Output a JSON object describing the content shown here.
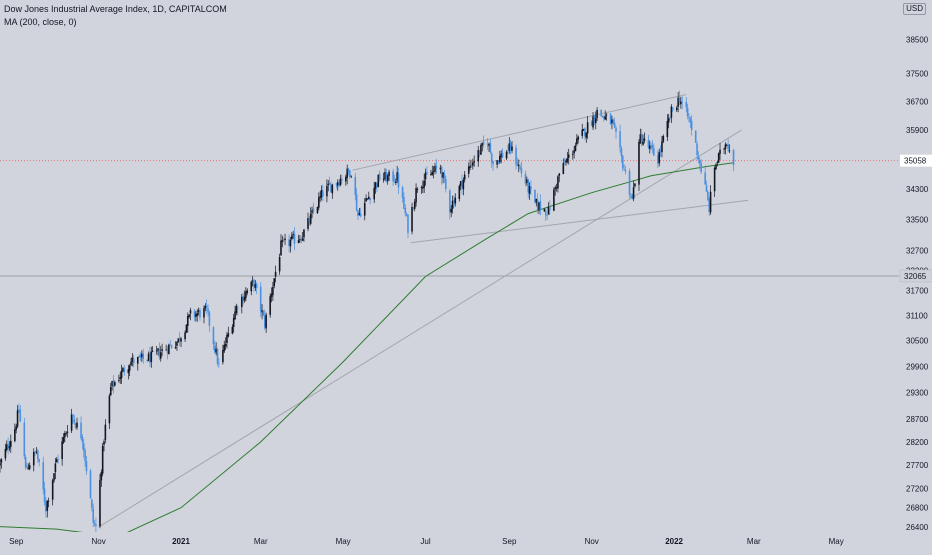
{
  "legend": {
    "title": "Dow Jones Industrial Average Index, 1D, CAPITALCOM",
    "indicator": "MA (200, close, 0)"
  },
  "currency": "USD",
  "colors": {
    "background": "#d1d4dc",
    "up_candle": "#131722",
    "down_candle": "#4a90e2",
    "ma": "#2e7d32",
    "trendline": "#a3a6ad",
    "last_price_line": "#e57373",
    "hline": "#9c9fa6",
    "last_price_badge": "#ffffff",
    "hline_badge": "#cfd2d8",
    "axis_text": "#131722"
  },
  "chart_data": {
    "type": "candlestick",
    "title": "Dow Jones Industrial Average Index, 1D, CAPITALCOM",
    "x_ticks": [
      "Sep",
      "Nov",
      "2021",
      "Mar",
      "May",
      "Jul",
      "Sep",
      "Nov",
      "2022",
      "Mar",
      "May"
    ],
    "x_range": [
      "2020-08-20",
      "2022-06-15"
    ],
    "y_ticks": [
      26400,
      26800,
      27200,
      27700,
      28200,
      28700,
      29300,
      29900,
      30500,
      31100,
      31700,
      32200,
      32700,
      33500,
      34300,
      35100,
      35900,
      36700,
      37500,
      38500,
      39500
    ],
    "ylim": [
      26300,
      39700
    ],
    "scale": "logarithmic",
    "grid": false,
    "last_price": 35058,
    "horizontal_line": 32065,
    "price_path": [
      [
        "2020-08-20",
        27700
      ],
      [
        "2020-08-31",
        28500
      ],
      [
        "2020-09-03",
        28900
      ],
      [
        "2020-09-08",
        27600
      ],
      [
        "2020-09-16",
        28000
      ],
      [
        "2020-09-23",
        26800
      ],
      [
        "2020-10-01",
        27800
      ],
      [
        "2020-10-12",
        28800
      ],
      [
        "2020-10-20",
        28300
      ],
      [
        "2020-10-28",
        26500
      ],
      [
        "2020-10-30",
        26400
      ],
      [
        "2020-11-05",
        28300
      ],
      [
        "2020-11-10",
        29400
      ],
      [
        "2020-11-24",
        30000
      ],
      [
        "2020-12-10",
        30100
      ],
      [
        "2020-12-30",
        30500
      ],
      [
        "2021-01-08",
        31100
      ],
      [
        "2021-01-20",
        31200
      ],
      [
        "2021-01-29",
        29900
      ],
      [
        "2021-02-12",
        31400
      ],
      [
        "2021-02-24",
        31900
      ],
      [
        "2021-03-04",
        30900
      ],
      [
        "2021-03-16",
        32800
      ],
      [
        "2021-04-01",
        33100
      ],
      [
        "2021-04-16",
        34200
      ],
      [
        "2021-05-07",
        34800
      ],
      [
        "2021-05-12",
        33600
      ],
      [
        "2021-05-28",
        34600
      ],
      [
        "2021-06-10",
        34600
      ],
      [
        "2021-06-18",
        33300
      ],
      [
        "2021-06-25",
        34400
      ],
      [
        "2021-07-12",
        34900
      ],
      [
        "2021-07-19",
        33800
      ],
      [
        "2021-08-04",
        35000
      ],
      [
        "2021-08-16",
        35600
      ],
      [
        "2021-08-20",
        35000
      ],
      [
        "2021-09-02",
        35400
      ],
      [
        "2021-09-20",
        33900
      ],
      [
        "2021-09-30",
        33700
      ],
      [
        "2021-10-08",
        34700
      ],
      [
        "2021-10-22",
        35600
      ],
      [
        "2021-11-05",
        36400
      ],
      [
        "2021-11-16",
        36100
      ],
      [
        "2021-12-01",
        34000
      ],
      [
        "2021-12-07",
        35700
      ],
      [
        "2021-12-20",
        35100
      ],
      [
        "2021-12-30",
        36400
      ],
      [
        "2022-01-05",
        36800
      ],
      [
        "2022-01-13",
        36100
      ],
      [
        "2022-01-20",
        35000
      ],
      [
        "2022-01-27",
        33800
      ],
      [
        "2022-01-31",
        34900
      ],
      [
        "2022-02-09",
        35600
      ],
      [
        "2022-02-14",
        35058
      ]
    ],
    "ma_path": [
      [
        "2020-08-20",
        26410
      ],
      [
        "2020-10-01",
        26360
      ],
      [
        "2020-11-15",
        26200
      ],
      [
        "2021-01-01",
        26800
      ],
      [
        "2021-03-01",
        28200
      ],
      [
        "2021-05-01",
        30000
      ],
      [
        "2021-07-01",
        32050
      ],
      [
        "2021-08-15",
        33000
      ],
      [
        "2021-09-15",
        33650
      ],
      [
        "2021-11-01",
        34200
      ],
      [
        "2021-12-15",
        34650
      ],
      [
        "2022-01-25",
        34900
      ],
      [
        "2022-02-14",
        35000
      ]
    ],
    "trendlines": [
      [
        [
          "2020-11-01",
          26400
        ],
        [
          "2022-02-20",
          35900
        ]
      ],
      [
        [
          "2021-05-08",
          34800
        ],
        [
          "2022-01-10",
          36900
        ]
      ],
      [
        [
          "2021-06-20",
          32900
        ],
        [
          "2022-02-25",
          34000
        ]
      ]
    ]
  }
}
